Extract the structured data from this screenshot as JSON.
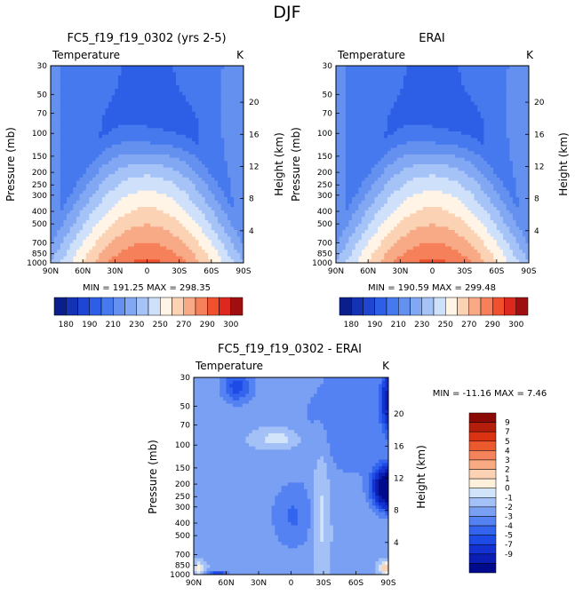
{
  "chart_data": {
    "type": "heatmap",
    "title": "DJF",
    "panels": [
      {
        "id": "p1",
        "title": "FC5_f19_f19_0302 (yrs 2-5)",
        "variable": "Temperature",
        "units": "K",
        "ylabel": "Pressure (mb)",
        "y2label": "Height (km)",
        "x_ticks": [
          "90N",
          "60N",
          "30N",
          "0",
          "30S",
          "60S",
          "90S"
        ],
        "pressure_ticks": [
          30,
          50,
          70,
          100,
          150,
          200,
          250,
          300,
          400,
          500,
          700,
          850,
          1000
        ],
        "height_ticks": [
          4,
          8,
          12,
          16,
          20
        ],
        "min": 191.25,
        "max": 298.35,
        "stats_text": "MIN = 191.25   MAX = 298.35",
        "field": "temperature"
      },
      {
        "id": "p2",
        "title": "ERAI",
        "variable": "Temperature",
        "units": "K",
        "ylabel": "Pressure (mb)",
        "y2label": "Height (km)",
        "x_ticks": [
          "90N",
          "60N",
          "30N",
          "0",
          "30S",
          "60S",
          "90S"
        ],
        "pressure_ticks": [
          30,
          50,
          70,
          100,
          150,
          200,
          250,
          300,
          400,
          500,
          700,
          850,
          1000
        ],
        "height_ticks": [
          4,
          8,
          12,
          16,
          20
        ],
        "min": 190.59,
        "max": 299.48,
        "stats_text": "MIN = 190.59   MAX = 299.48",
        "field": "temperature"
      },
      {
        "id": "p3",
        "title": "FC5_f19_f19_0302 - ERAI",
        "variable": "Temperature",
        "units": "K",
        "ylabel": "Pressure (mb)",
        "y2label": "Height (km)",
        "x_ticks": [
          "90N",
          "60N",
          "30N",
          "0",
          "30S",
          "60S",
          "90S"
        ],
        "pressure_ticks": [
          30,
          50,
          70,
          100,
          150,
          200,
          250,
          300,
          400,
          500,
          700,
          850,
          1000
        ],
        "height_ticks": [
          4,
          8,
          12,
          16,
          20
        ],
        "min": -11.16,
        "max": 7.46,
        "stats_text": "MIN = -11.16   MAX =    7.46",
        "field": "difference"
      }
    ],
    "temperature_colorbar": {
      "levels": [
        180,
        185,
        190,
        200,
        210,
        220,
        230,
        240,
        250,
        260,
        270,
        280,
        290,
        300
      ],
      "labels": [
        "180",
        "190",
        "210",
        "230",
        "250",
        "270",
        "290",
        "300"
      ],
      "colors": [
        "#0a1e8c",
        "#1432b4",
        "#1e46d2",
        "#2d5ee6",
        "#4678ee",
        "#6490f0",
        "#82a8f4",
        "#a5c3f7",
        "#cfe0fa",
        "#fff4e6",
        "#fcd2b4",
        "#f8aa87",
        "#f6805a",
        "#f0502d",
        "#dc281e",
        "#a00f0f"
      ]
    },
    "difference_colorbar": {
      "levels": [
        -9,
        -7,
        -5,
        -4,
        -3,
        -2,
        -1,
        0,
        1,
        2,
        3,
        4,
        5,
        7,
        9
      ],
      "labels": [
        "9",
        "7",
        "5",
        "4",
        "3",
        "2",
        "1",
        "0",
        "-1",
        "-2",
        "-3",
        "-4",
        "-5",
        "-7",
        "-9"
      ],
      "colors": [
        "#000a8c",
        "#0a1eb4",
        "#1432d2",
        "#1e4be6",
        "#3264ee",
        "#5582f2",
        "#7aa0f4",
        "#a3c0f7",
        "#d2e4fa",
        "#fff0dc",
        "#fcd2b4",
        "#f8ab82",
        "#f4825a",
        "#eb5a2d",
        "#dc3214",
        "#b41e0a",
        "#8c0a05"
      ]
    }
  }
}
